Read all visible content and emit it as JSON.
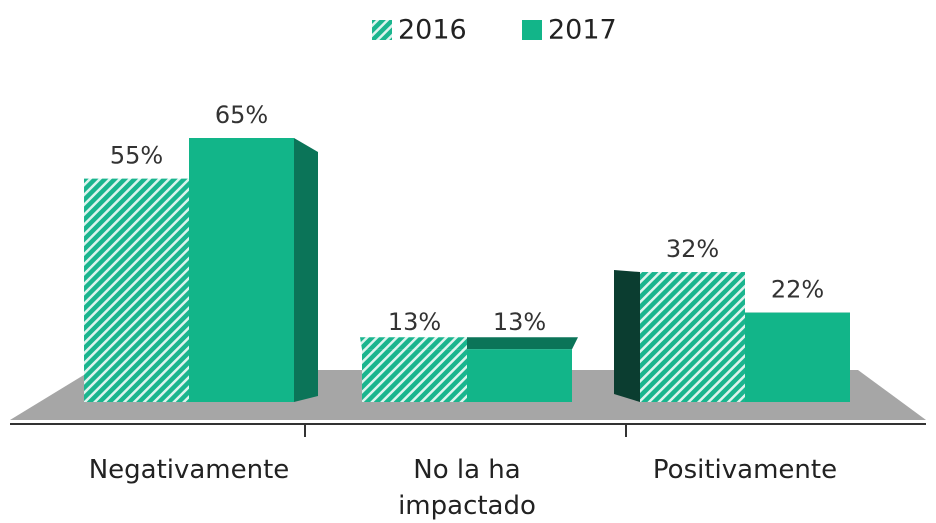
{
  "chart_data": {
    "type": "bar3d",
    "categories": [
      "Negativamente",
      "No la ha impactado",
      "Positivamente"
    ],
    "series": [
      {
        "name": "2016",
        "color": "#1ab58e",
        "pattern": "hatch",
        "values": [
          55,
          13,
          32
        ],
        "value_labels": [
          "55%",
          "13%",
          "32%"
        ]
      },
      {
        "name": "2017",
        "color": "#12b589",
        "pattern": "solid",
        "values": [
          65,
          13,
          22
        ],
        "value_labels": [
          "65%",
          "13%",
          "22%"
        ]
      }
    ],
    "legend": "top"
  }
}
